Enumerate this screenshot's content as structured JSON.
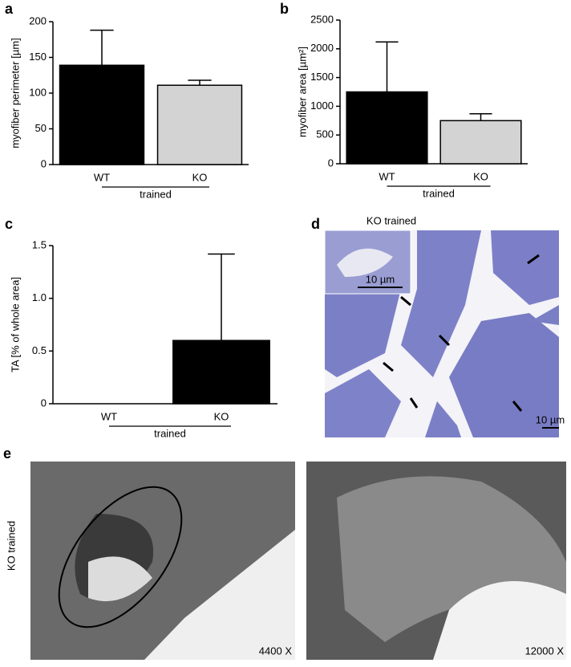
{
  "chart_data": [
    {
      "type": "bar",
      "label": "a",
      "ylabel": "myofiber perimeter [µm]",
      "categories": [
        "WT",
        "KO"
      ],
      "values": [
        139,
        111
      ],
      "errors": [
        49,
        7
      ],
      "colors": [
        "#000000",
        "#d3d3d3"
      ],
      "ylim": [
        0,
        200
      ],
      "yticks": [
        0,
        50,
        100,
        150,
        200
      ],
      "group_label": "trained"
    },
    {
      "type": "bar",
      "label": "b",
      "ylabel": "myofiber area [µm²]",
      "categories": [
        "WT",
        "KO"
      ],
      "values": [
        1250,
        750
      ],
      "errors": [
        870,
        120
      ],
      "colors": [
        "#000000",
        "#d3d3d3"
      ],
      "ylim": [
        0,
        2500
      ],
      "yticks": [
        0,
        500,
        1000,
        1500,
        2000,
        2500
      ],
      "group_label": "trained"
    },
    {
      "type": "bar",
      "label": "c",
      "ylabel": "TA [% of whole area]",
      "categories": [
        "WT",
        "KO"
      ],
      "values": [
        0,
        0.6
      ],
      "errors": [
        null,
        0.82
      ],
      "colors": [
        "#000000",
        "#000000"
      ],
      "ylim": [
        0,
        1.5
      ],
      "yticks": [
        0,
        0.5,
        {
          "value": 1,
          "label": "1.0"
        },
        {
          "value": 1.5,
          "label": "1.5"
        }
      ],
      "group_label": "trained"
    }
  ],
  "panel_d": {
    "label": "d",
    "title": "KO trained",
    "inset_scale": "10 µm",
    "scale": "10 µm"
  },
  "panel_e": {
    "label": "e",
    "row_label": "KO trained",
    "left_magnification": "4400 X",
    "right_magnification": "12000 X"
  }
}
